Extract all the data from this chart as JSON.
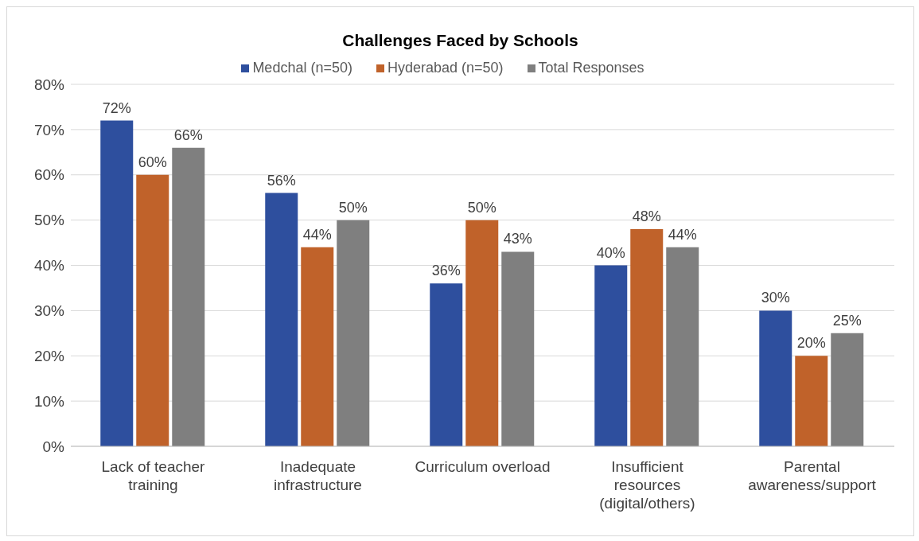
{
  "chart_data": {
    "type": "bar",
    "title": "Challenges Faced by Schools",
    "categories": [
      "Lack of teacher training",
      "Inadequate infrastructure",
      "Curriculum overload",
      "Insufficient resources (digital/others)",
      "Parental awareness/support"
    ],
    "series": [
      {
        "name": "Medchal (n=50)",
        "color": "#2e4f9e",
        "values": [
          72,
          56,
          36,
          40,
          30
        ],
        "value_labels": [
          "72%",
          "56%",
          "36%",
          "40%",
          "30%"
        ]
      },
      {
        "name": "Hyderabad (n=50)",
        "color": "#c0622a",
        "values": [
          60,
          44,
          50,
          48,
          20
        ],
        "value_labels": [
          "60%",
          "44%",
          "50%",
          "48%",
          "20%"
        ]
      },
      {
        "name": "Total Responses",
        "color": "#7f7f7f",
        "values": [
          66,
          50,
          43,
          44,
          25
        ],
        "value_labels": [
          "66%",
          "50%",
          "43%",
          "44%",
          "25%"
        ]
      }
    ],
    "ylim": [
      0,
      80
    ],
    "yticks": [
      {
        "value": 0,
        "label": "0%"
      },
      {
        "value": 10,
        "label": "10%"
      },
      {
        "value": 20,
        "label": "20%"
      },
      {
        "value": 30,
        "label": "30%"
      },
      {
        "value": 40,
        "label": "40%"
      },
      {
        "value": 50,
        "label": "50%"
      },
      {
        "value": 60,
        "label": "60%"
      },
      {
        "value": 70,
        "label": "70%"
      },
      {
        "value": 80,
        "label": "80%"
      }
    ],
    "grid": "y",
    "legend": "top"
  }
}
